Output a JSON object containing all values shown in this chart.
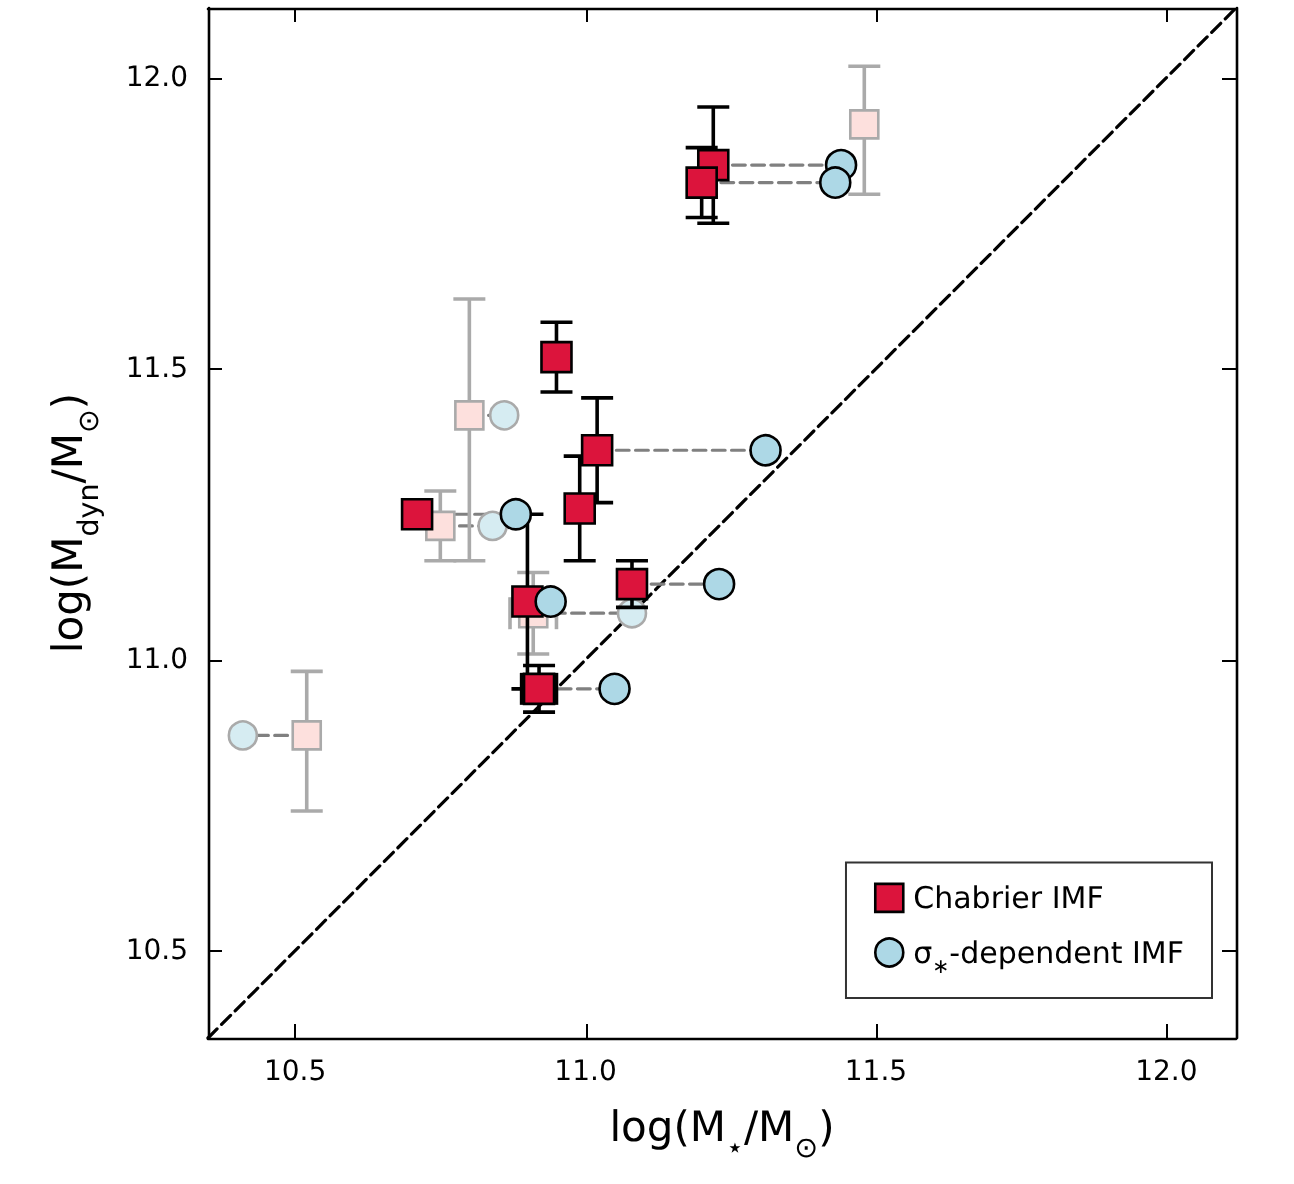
{
  "chart_data": {
    "type": "scatter",
    "xlabel": "log(M$_{⋆}$/M$_{⊙}$)",
    "ylabel": "log(M$_{dyn}$/M$_{⊙}$)",
    "xlim": [
      10.35,
      12.12
    ],
    "ylim": [
      10.35,
      12.12
    ],
    "xticks": [
      {
        "value": 10.5,
        "label": "10.5"
      },
      {
        "value": 11,
        "label": "11.0"
      },
      {
        "value": 11.5,
        "label": "11.5"
      },
      {
        "value": 12,
        "label": "12.0"
      }
    ],
    "yticks": [
      {
        "value": 10.5,
        "label": "10.5"
      },
      {
        "value": 11,
        "label": "11.0"
      },
      {
        "value": 11.5,
        "label": "11.5"
      },
      {
        "value": 12,
        "label": "12.0"
      }
    ],
    "grid": false,
    "legend": "bottom right",
    "series": [
      {
        "type": "line",
        "color": "#000000",
        "line_style": "dashed",
        "marker": "none",
        "x": [
          10.35,
          12.12
        ],
        "values": [
          10.35,
          12.12
        ]
      },
      {
        "type": "line",
        "color": "#808080",
        "line_style": "dashed",
        "marker": "none",
        "x": [
          11.22,
          11.44,
          null,
          11.2,
          11.43,
          null,
          11.02,
          11.31,
          null,
          10.71,
          10.88,
          null,
          10.9,
          10.94,
          null,
          11.08,
          11.23,
          null,
          10.92,
          11.05,
          null,
          10.8,
          10.86,
          null,
          10.75,
          10.84,
          null,
          10.91,
          11.08,
          null,
          10.52,
          10.41
        ],
        "values": [
          11.85,
          11.85,
          null,
          11.82,
          11.82,
          null,
          11.36,
          11.36,
          null,
          11.25,
          11.25,
          null,
          11.1,
          11.1,
          null,
          11.13,
          11.13,
          null,
          10.95,
          10.95,
          null,
          11.42,
          11.42,
          null,
          11.23,
          11.23,
          null,
          11.08,
          11.08,
          null,
          10.87,
          10.87
        ]
      },
      {
        "color": "#fde0dd",
        "marker": "square",
        "x": [
          11.48,
          10.8,
          10.75,
          10.91,
          10.52
        ],
        "values": [
          11.92,
          11.42,
          11.23,
          11.08,
          10.87
        ],
        "errors": [
          [
            11.8,
            12.02
          ],
          [
            11.17,
            11.62
          ],
          0.06,
          0.07,
          [
            10.74,
            10.98
          ]
        ],
        "xerrors": [
          null,
          null,
          null,
          0.04,
          null
        ]
      },
      {
        "color": "#d6ecf2",
        "marker": "circle",
        "x": [
          10.86,
          10.84,
          11.08,
          10.41
        ],
        "values": [
          11.42,
          11.23,
          11.08,
          10.87
        ]
      },
      {
        "name": "Chabrier IMF",
        "color": "#dc143c",
        "marker": "square",
        "x": [
          11.22,
          11.2,
          10.95,
          11.02,
          10.99,
          10.71,
          10.9,
          10.92,
          11.08
        ],
        "values": [
          11.85,
          11.82,
          11.52,
          11.36,
          11.26,
          11.25,
          11.1,
          10.95,
          11.13
        ],
        "errors": [
          0.1,
          0.06,
          0.06,
          0.09,
          0.09,
          null,
          0.15,
          0.04,
          0.04
        ],
        "xerrors": [
          null,
          null,
          null,
          null,
          null,
          null,
          null,
          0.03,
          null
        ]
      },
      {
        "name": "σ$_{∗}$-dependent IMF",
        "color": "#add8e6",
        "marker": "circle",
        "x": [
          11.44,
          11.43,
          11.31,
          10.88,
          10.94,
          11.23,
          11.05
        ],
        "values": [
          11.85,
          11.82,
          11.36,
          11.25,
          11.1,
          11.13,
          10.95
        ]
      }
    ]
  }
}
